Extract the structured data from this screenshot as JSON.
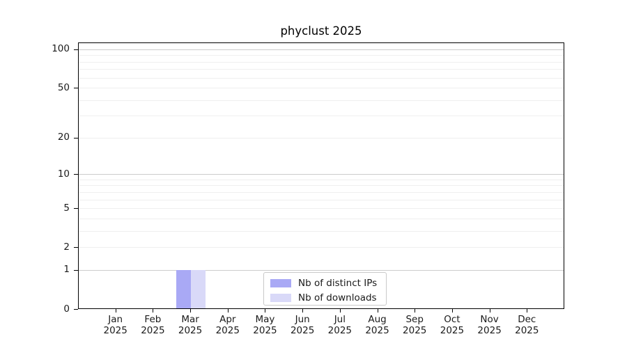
{
  "chart_data": {
    "type": "bar",
    "title": "phyclust 2025",
    "categories": [
      "Jan 2025",
      "Feb 2025",
      "Mar 2025",
      "Apr 2025",
      "May 2025",
      "Jun 2025",
      "Jul 2025",
      "Aug 2025",
      "Sep 2025",
      "Oct 2025",
      "Nov 2025",
      "Dec 2025"
    ],
    "series": [
      {
        "name": "Nb of distinct IPs",
        "color": "#a9a9f5",
        "values": [
          0,
          0,
          1,
          0,
          0,
          0,
          0,
          0,
          0,
          0,
          0,
          0
        ]
      },
      {
        "name": "Nb of downloads",
        "color": "#d9d9f8",
        "values": [
          0,
          0,
          1,
          0,
          0,
          0,
          0,
          0,
          0,
          0,
          0,
          0
        ]
      }
    ],
    "xlabel": "",
    "ylabel": "",
    "y_axis": {
      "scale": "log1p",
      "ylim": [
        0,
        113
      ],
      "tick_labels": [
        "100",
        "50",
        "20",
        "10",
        "5",
        "2",
        "1",
        "0"
      ],
      "tick_values": [
        100,
        50,
        20,
        10,
        5,
        2,
        1,
        0
      ],
      "grid_major": [
        1,
        10,
        100
      ],
      "grid_minor": [
        2,
        3,
        4,
        5,
        6,
        7,
        8,
        9,
        20,
        30,
        40,
        50,
        60,
        70,
        80,
        90
      ]
    },
    "grid": "on",
    "legend_position": "inside-bottom-center"
  }
}
